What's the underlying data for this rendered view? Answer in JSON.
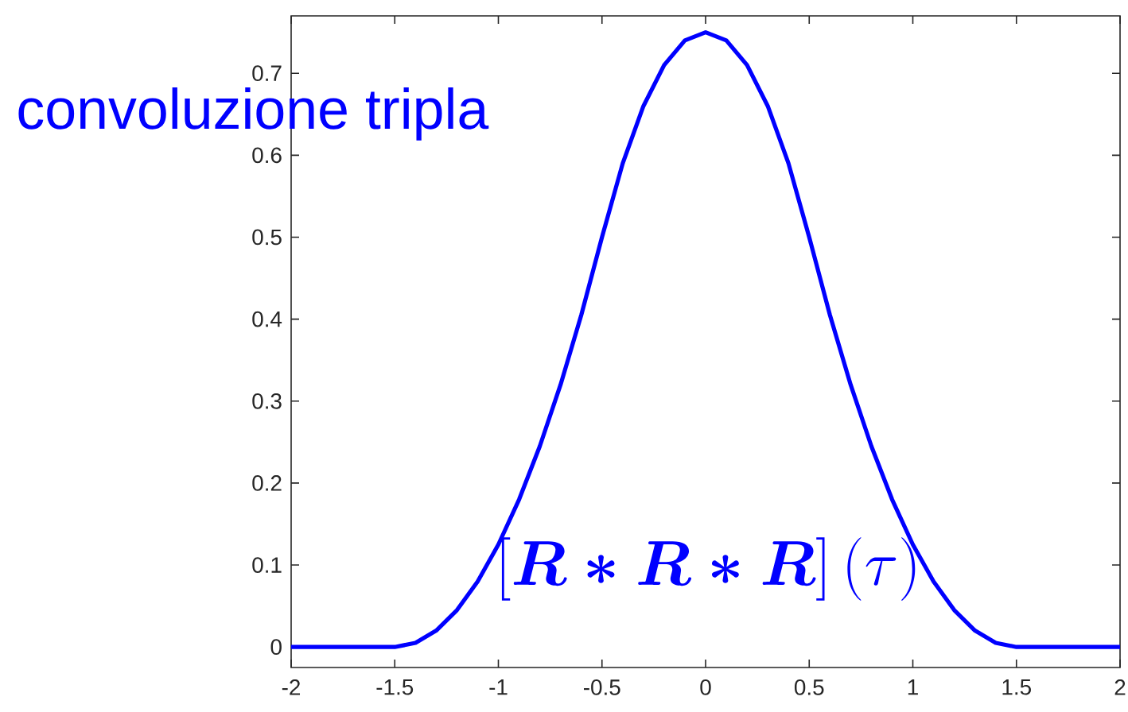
{
  "chart_data": {
    "type": "line",
    "title": "convoluzione tripla",
    "annotations": [
      "\\left[\\boldsymbol{R*R*R}\\right](\\tau)"
    ],
    "x": [
      -2,
      -1.9,
      -1.8,
      -1.7,
      -1.6,
      -1.5,
      -1.4,
      -1.3,
      -1.2,
      -1.1,
      -1,
      -0.9,
      -0.8,
      -0.7,
      -0.6,
      -0.5,
      -0.4,
      -0.3,
      -0.2,
      -0.1,
      0,
      0.1,
      0.2,
      0.3,
      0.4,
      0.5,
      0.6,
      0.7,
      0.8,
      0.9,
      1,
      1.1,
      1.2,
      1.3,
      1.4,
      1.5,
      1.6,
      1.7,
      1.8,
      1.9,
      2
    ],
    "series": [
      {
        "color": "#0000ff",
        "values": [
          0,
          0,
          0,
          0,
          0,
          0,
          0.005,
          0.02,
          0.045,
          0.08,
          0.125,
          0.18,
          0.245,
          0.32,
          0.405,
          0.5,
          0.59,
          0.66,
          0.71,
          0.74,
          0.75,
          0.74,
          0.71,
          0.66,
          0.59,
          0.5,
          0.405,
          0.32,
          0.245,
          0.18,
          0.125,
          0.08,
          0.045,
          0.02,
          0.005,
          0,
          0,
          0,
          0,
          0,
          0
        ]
      }
    ],
    "xlim": [
      -2,
      2
    ],
    "xticks": [
      -2,
      -1.5,
      -1,
      -0.5,
      0,
      0.5,
      1,
      1.5,
      2
    ],
    "ylim": [
      -0.025,
      0.77
    ],
    "yticks": [
      0,
      0.1,
      0.2,
      0.3,
      0.4,
      0.5,
      0.6,
      0.7
    ]
  }
}
